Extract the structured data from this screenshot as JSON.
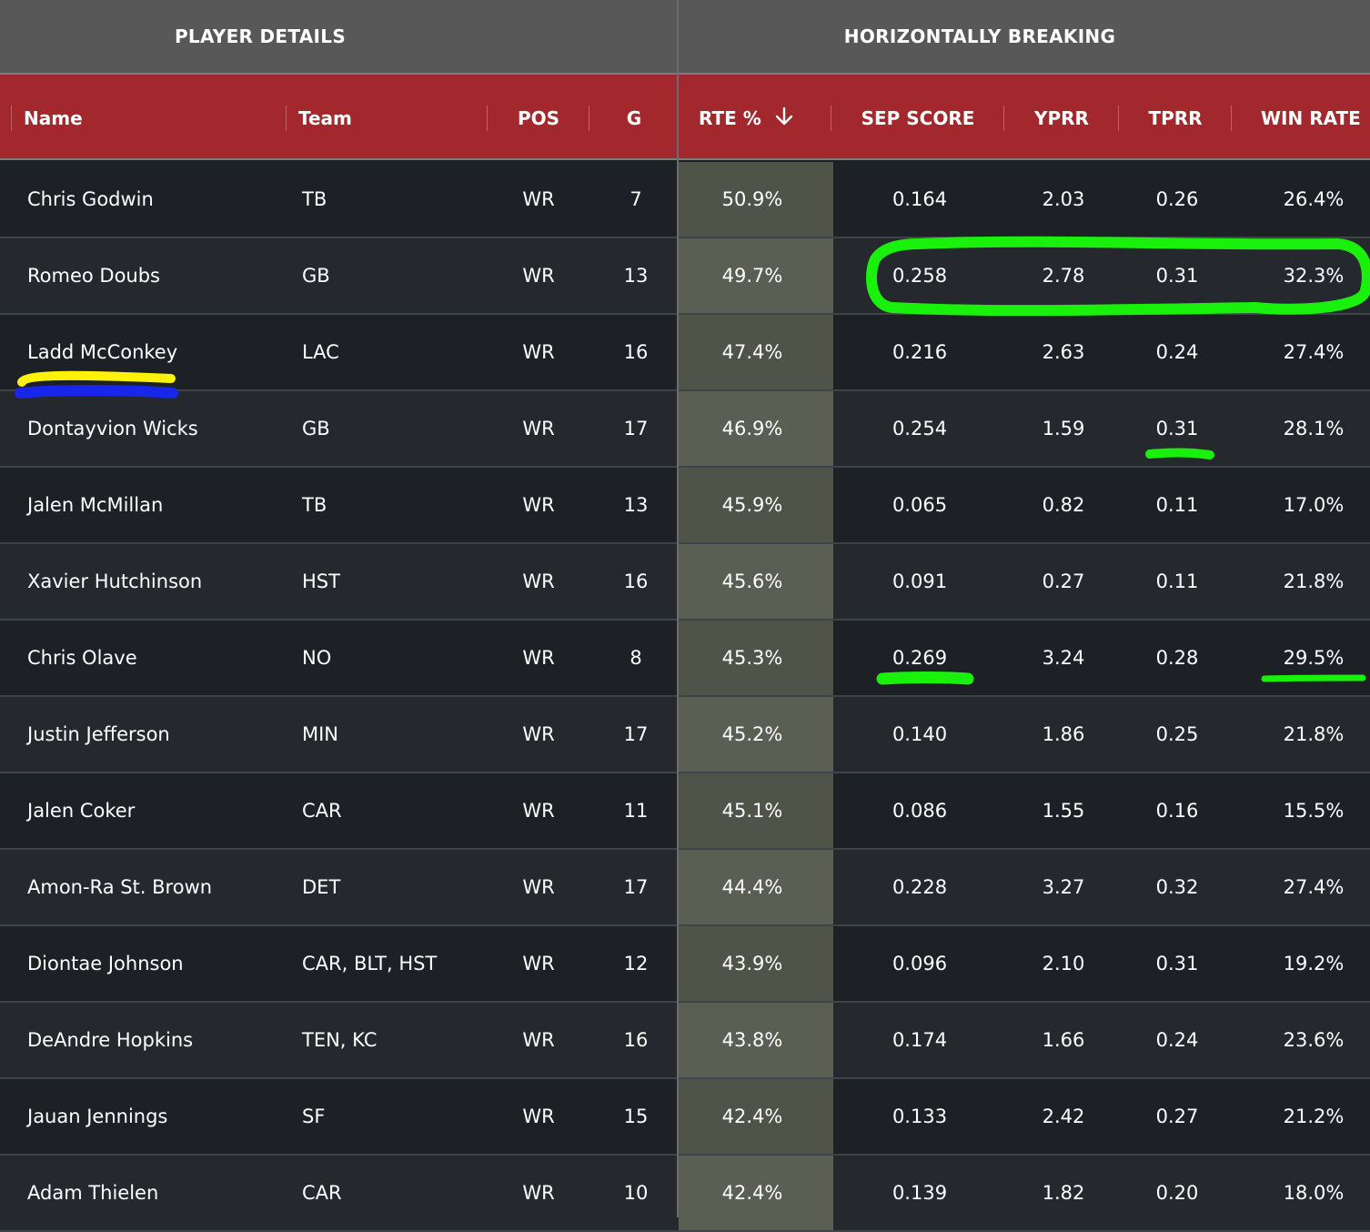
{
  "group_headers": {
    "player_details": "PLAYER DETAILS",
    "horizontally_breaking": "HORIZONTALLY BREAKING"
  },
  "columns": {
    "name": "Name",
    "team": "Team",
    "pos": "POS",
    "g": "G",
    "rte": "RTE %",
    "sep_score": "SEP SCORE",
    "yprr": "YPRR",
    "tprr": "TPRR",
    "win_rate": "WIN RATE"
  },
  "sort_icon": "arrow-down-icon",
  "players": [
    {
      "name": "Chris Godwin",
      "team": "TB",
      "pos": "WR",
      "g": "7",
      "rte": "50.9%",
      "sep": "0.164",
      "yprr": "2.03",
      "tprr": "0.26",
      "win": "26.4%"
    },
    {
      "name": "Romeo Doubs",
      "team": "GB",
      "pos": "WR",
      "g": "13",
      "rte": "49.7%",
      "sep": "0.258",
      "yprr": "2.78",
      "tprr": "0.31",
      "win": "32.3%"
    },
    {
      "name": "Ladd McConkey",
      "team": "LAC",
      "pos": "WR",
      "g": "16",
      "rte": "47.4%",
      "sep": "0.216",
      "yprr": "2.63",
      "tprr": "0.24",
      "win": "27.4%"
    },
    {
      "name": "Dontayvion Wicks",
      "team": "GB",
      "pos": "WR",
      "g": "17",
      "rte": "46.9%",
      "sep": "0.254",
      "yprr": "1.59",
      "tprr": "0.31",
      "win": "28.1%"
    },
    {
      "name": "Jalen McMillan",
      "team": "TB",
      "pos": "WR",
      "g": "13",
      "rte": "45.9%",
      "sep": "0.065",
      "yprr": "0.82",
      "tprr": "0.11",
      "win": "17.0%"
    },
    {
      "name": "Xavier Hutchinson",
      "team": "HST",
      "pos": "WR",
      "g": "16",
      "rte": "45.6%",
      "sep": "0.091",
      "yprr": "0.27",
      "tprr": "0.11",
      "win": "21.8%"
    },
    {
      "name": "Chris Olave",
      "team": "NO",
      "pos": "WR",
      "g": "8",
      "rte": "45.3%",
      "sep": "0.269",
      "yprr": "3.24",
      "tprr": "0.28",
      "win": "29.5%"
    },
    {
      "name": "Justin Jefferson",
      "team": "MIN",
      "pos": "WR",
      "g": "17",
      "rte": "45.2%",
      "sep": "0.140",
      "yprr": "1.86",
      "tprr": "0.25",
      "win": "21.8%"
    },
    {
      "name": "Jalen Coker",
      "team": "CAR",
      "pos": "WR",
      "g": "11",
      "rte": "45.1%",
      "sep": "0.086",
      "yprr": "1.55",
      "tprr": "0.16",
      "win": "15.5%"
    },
    {
      "name": "Amon-Ra St. Brown",
      "team": "DET",
      "pos": "WR",
      "g": "17",
      "rte": "44.4%",
      "sep": "0.228",
      "yprr": "3.27",
      "tprr": "0.32",
      "win": "27.4%"
    },
    {
      "name": "Diontae Johnson",
      "team": "CAR, BLT, HST",
      "pos": "WR",
      "g": "12",
      "rte": "43.9%",
      "sep": "0.096",
      "yprr": "2.10",
      "tprr": "0.31",
      "win": "19.2%"
    },
    {
      "name": "DeAndre Hopkins",
      "team": "TEN, KC",
      "pos": "WR",
      "g": "16",
      "rte": "43.8%",
      "sep": "0.174",
      "yprr": "1.66",
      "tprr": "0.24",
      "win": "23.6%"
    },
    {
      "name": "Jauan Jennings",
      "team": "SF",
      "pos": "WR",
      "g": "15",
      "rte": "42.4%",
      "sep": "0.133",
      "yprr": "2.42",
      "tprr": "0.27",
      "win": "21.2%"
    },
    {
      "name": "Adam Thielen",
      "team": "CAR",
      "pos": "WR",
      "g": "10",
      "rte": "42.4%",
      "sep": "0.139",
      "yprr": "1.82",
      "tprr": "0.20",
      "win": "18.0%"
    }
  ],
  "annotation_colors": {
    "green": "#19f00b",
    "yellow": "#fff20a",
    "blue": "#1726e8"
  }
}
